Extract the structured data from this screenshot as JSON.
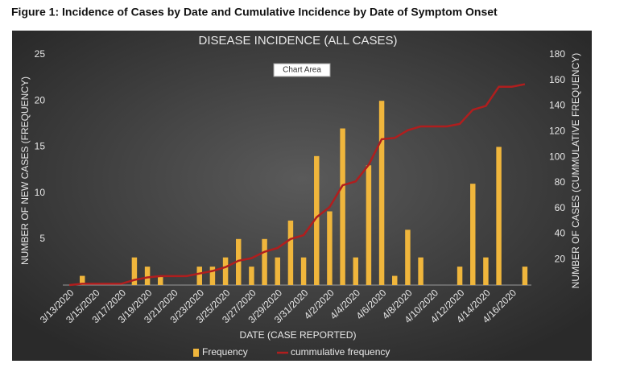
{
  "figure_caption": "Figure 1: Incidence of Cases by Date and Cumulative Incidence by Date of Symptom Onset",
  "tooltip": "Chart Area",
  "chart_data": {
    "type": "bar",
    "title": "DISEASE INCIDENCE (ALL CASES)",
    "xlabel": "DATE (CASE REPORTED)",
    "ylabel": "NUMBER OF NEW CASES (FREQUENCY)",
    "y2label": "NUMBER OF CASES (CUMMULATIVE FREQUENCY)",
    "categories": [
      "3/13/2020",
      null,
      "3/15/2020",
      null,
      "3/17/2020",
      null,
      "3/19/2020",
      null,
      "3/21/2020",
      null,
      "3/23/2020",
      null,
      "3/25/2020",
      null,
      "3/27/2020",
      null,
      "3/29/2020",
      null,
      "3/31/2020",
      null,
      "4/2/2020",
      null,
      "4/4/2020",
      null,
      "4/6/2020",
      null,
      "4/8/2020",
      null,
      "4/10/2020",
      null,
      "4/12/2020",
      null,
      "4/14/2020",
      null,
      "4/16/2020",
      null
    ],
    "series": [
      {
        "name": "Frequency",
        "type": "bar",
        "color": "#f0b63c",
        "values": [
          0,
          1,
          0,
          0,
          0,
          3,
          2,
          1,
          0,
          0,
          2,
          2,
          3,
          5,
          2,
          5,
          3,
          7,
          3,
          14,
          8,
          17,
          3,
          13,
          20,
          1,
          6,
          3,
          0,
          0,
          2,
          11,
          3,
          15,
          0,
          2
        ]
      },
      {
        "name": "cummulative frequency",
        "type": "line",
        "axis": "y2",
        "color": "#b01e1e",
        "values": [
          0,
          1,
          1,
          1,
          1,
          4,
          6,
          7,
          7,
          7,
          9,
          11,
          14,
          19,
          21,
          26,
          29,
          36,
          39,
          53,
          61,
          78,
          81,
          94,
          114,
          115,
          121,
          124,
          124,
          124,
          126,
          137,
          140,
          155,
          155,
          157
        ]
      }
    ],
    "ylim": [
      0,
      25
    ],
    "yticks": [
      5,
      10,
      15,
      20,
      25
    ],
    "y2lim": [
      0,
      180
    ],
    "y2ticks": [
      20,
      40,
      60,
      80,
      100,
      120,
      140,
      160,
      180
    ],
    "grid": false,
    "legend": "bottom"
  }
}
